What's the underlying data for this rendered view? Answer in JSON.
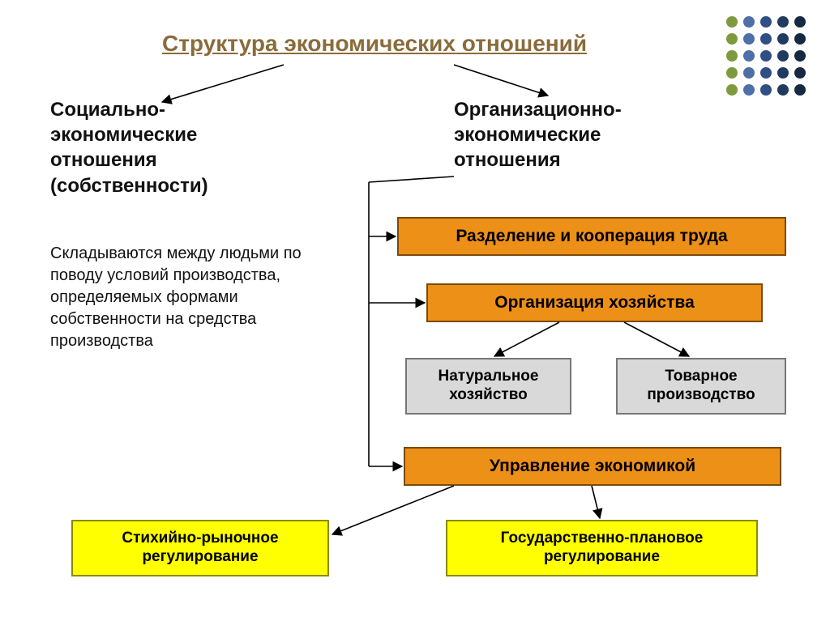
{
  "type": "flowchart",
  "background_color": "#ffffff",
  "title": {
    "text": "Структура экономических отношений",
    "color": "#8a6b3a",
    "fontsize": 28,
    "underline": true
  },
  "dot_matrix": {
    "rows": 5,
    "cols": 5,
    "radius": 7,
    "spacing": 21,
    "colors": {
      "c0": "#7e9a3e",
      "c1": "#4f6fa8",
      "c2": "#2e4f83",
      "c3": "#213a60",
      "c4": "#162842"
    }
  },
  "left_branch": {
    "title": "Социально-\nэкономические отношения (собственности)",
    "title_fontsize": 24,
    "desc": "Складываются между людьми по поводу условий производства, определяемых формами собственности на средства производства",
    "desc_fontsize": 20
  },
  "right_branch": {
    "title": "Организационно-\nэкономические отношения",
    "title_fontsize": 24
  },
  "boxes": {
    "division": {
      "text": "Разделение и кооперация труда",
      "bg": "#ed9017",
      "border": "#7a4a0d",
      "fontsize": 21
    },
    "organization": {
      "text": "Организация хозяйства",
      "bg": "#ed9017",
      "border": "#7a4a0d",
      "fontsize": 21
    },
    "natural": {
      "text": "Натуральное хозяйство",
      "bg": "#d9d9d9",
      "border": "#777777",
      "fontsize": 19
    },
    "commodity": {
      "text": "Товарное производство",
      "bg": "#d9d9d9",
      "border": "#777777",
      "fontsize": 19
    },
    "management": {
      "text": "Управление экономикой",
      "bg": "#ed9017",
      "border": "#7a4a0d",
      "fontsize": 21
    },
    "market": {
      "text": "Стихийно-рыночное регулирование",
      "bg": "#ffff00",
      "border": "#8a8a00",
      "fontsize": 19
    },
    "planned": {
      "text": "Государственно-плановое регулирование",
      "bg": "#ffff00",
      "border": "#8a8a00",
      "fontsize": 19
    }
  },
  "arrows": {
    "stroke": "#000000",
    "stroke_width": 1.6
  }
}
